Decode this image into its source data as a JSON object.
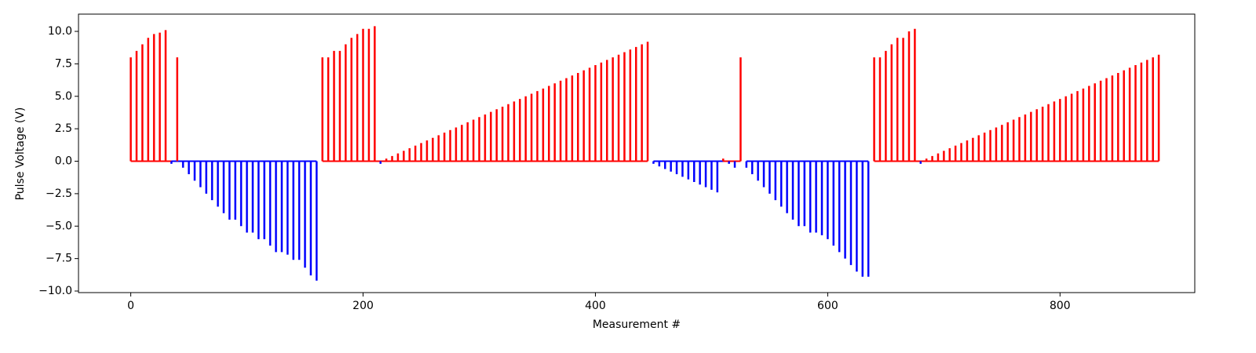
{
  "chart_data": {
    "type": "stem",
    "xlabel": "Measurement #",
    "ylabel": "Pulse Voltage (V)",
    "xlim": [
      -45,
      916
    ],
    "ylim": [
      -10.12,
      11.33
    ],
    "xticks": [
      0,
      200,
      400,
      600,
      800
    ],
    "yticks": [
      {
        "value": -10,
        "label": "−10.0"
      },
      {
        "value": -7.5,
        "label": "−7.5"
      },
      {
        "value": -5,
        "label": "−5.0"
      },
      {
        "value": -2.5,
        "label": "−2.5"
      },
      {
        "value": 0,
        "label": "0.0"
      },
      2.5,
      {
        "value": 5,
        "label": "5.0"
      },
      7.5,
      {
        "value": 10,
        "label": "10.0"
      }
    ],
    "series": [
      {
        "color": "#ff0000",
        "x": [
          0,
          5,
          10,
          15,
          20,
          25,
          30,
          40
        ],
        "values": [
          8.0,
          8.5,
          9.0,
          9.5,
          9.8,
          9.9,
          10.1,
          8.0
        ]
      },
      {
        "color": "#0000ff",
        "x": [
          35,
          45,
          50,
          55,
          60,
          65,
          70,
          75,
          80,
          85,
          90,
          95,
          100,
          105,
          110,
          115,
          120,
          125,
          130,
          135,
          140,
          145,
          150,
          155,
          160
        ],
        "values": [
          -0.2,
          -0.5,
          -1.0,
          -1.5,
          -2.0,
          -2.5,
          -3.0,
          -3.5,
          -4.0,
          -4.5,
          -4.5,
          -5.0,
          -5.5,
          -5.5,
          -6.0,
          -6.0,
          -6.5,
          -7.0,
          -7.0,
          -7.2,
          -7.6,
          -7.6,
          -8.2,
          -8.8,
          -9.2
        ]
      },
      {
        "color": "#ff0000",
        "x": [
          165,
          170,
          175,
          180,
          185,
          190,
          195,
          200,
          205,
          210,
          220,
          225,
          230,
          235,
          240,
          245,
          250,
          255,
          260,
          265,
          270,
          275,
          280,
          285,
          290,
          295,
          300,
          305,
          310,
          315,
          320,
          325,
          330,
          335,
          340,
          345,
          350,
          355,
          360,
          365,
          370,
          375,
          380,
          385,
          390,
          395,
          400,
          405,
          410,
          415,
          420,
          425,
          430,
          435,
          440,
          445
        ],
        "values": [
          8.0,
          8.0,
          8.5,
          8.5,
          9.0,
          9.5,
          9.8,
          10.2,
          10.2,
          10.4,
          0.2,
          0.4,
          0.6,
          0.8,
          1.0,
          1.2,
          1.4,
          1.6,
          1.8,
          2.0,
          2.2,
          2.4,
          2.6,
          2.8,
          3.0,
          3.2,
          3.4,
          3.6,
          3.8,
          4.0,
          4.2,
          4.4,
          4.6,
          4.8,
          5.0,
          5.2,
          5.4,
          5.6,
          5.8,
          6.0,
          6.2,
          6.4,
          6.6,
          6.8,
          7.0,
          7.2,
          7.4,
          7.6,
          7.8,
          8.0,
          8.2,
          8.4,
          8.6,
          8.8,
          9.0,
          9.2
        ]
      },
      {
        "color": "#0000ff",
        "x": [
          215
        ],
        "values": [
          -0.2
        ]
      },
      {
        "color": "#0000ff",
        "x": [
          450,
          455,
          460,
          465,
          470,
          475,
          480,
          485,
          490,
          495,
          500,
          505,
          515,
          520
        ],
        "values": [
          -0.2,
          -0.4,
          -0.6,
          -0.8,
          -1.0,
          -1.2,
          -1.4,
          -1.6,
          -1.8,
          -2.0,
          -2.2,
          -2.4,
          -0.2,
          -0.5
        ]
      },
      {
        "color": "#ff0000",
        "x": [
          510,
          525
        ],
        "values": [
          0.2,
          8.0
        ]
      },
      {
        "color": "#0000ff",
        "x": [
          530,
          535,
          540,
          545,
          550,
          555,
          560,
          565,
          570,
          575,
          580,
          585,
          590,
          595,
          600,
          605,
          610,
          615,
          620,
          625,
          630,
          635
        ],
        "values": [
          -0.5,
          -1.0,
          -1.5,
          -2.0,
          -2.5,
          -3.0,
          -3.5,
          -4.0,
          -4.5,
          -5.0,
          -5.0,
          -5.5,
          -5.5,
          -5.7,
          -6.0,
          -6.5,
          -7.0,
          -7.5,
          -8.0,
          -8.5,
          -8.9,
          -8.9
        ]
      },
      {
        "color": "#ff0000",
        "x": [
          640,
          645,
          650,
          655,
          660,
          665,
          670,
          675,
          685,
          690,
          695,
          700,
          705,
          710,
          715,
          720,
          725,
          730,
          735,
          740,
          745,
          750,
          755,
          760,
          765,
          770,
          775,
          780,
          785,
          790,
          795,
          800,
          805,
          810,
          815,
          820,
          825,
          830,
          835,
          840,
          845,
          850,
          855,
          860,
          865,
          870,
          875,
          880,
          885
        ],
        "values": [
          8.0,
          8.0,
          8.5,
          9.0,
          9.5,
          9.5,
          10.0,
          10.2,
          0.2,
          0.4,
          0.6,
          0.8,
          1.0,
          1.2,
          1.4,
          1.6,
          1.8,
          2.0,
          2.2,
          2.4,
          2.6,
          2.8,
          3.0,
          3.2,
          3.4,
          3.6,
          3.8,
          4.0,
          4.2,
          4.4,
          4.6,
          4.8,
          5.0,
          5.2,
          5.4,
          5.6,
          5.8,
          6.0,
          6.2,
          6.4,
          6.6,
          6.8,
          7.0,
          7.2,
          7.4,
          7.6,
          7.8,
          8.0,
          8.2
        ]
      },
      {
        "color": "#0000ff",
        "x": [
          680
        ],
        "values": [
          -0.2
        ]
      }
    ]
  }
}
